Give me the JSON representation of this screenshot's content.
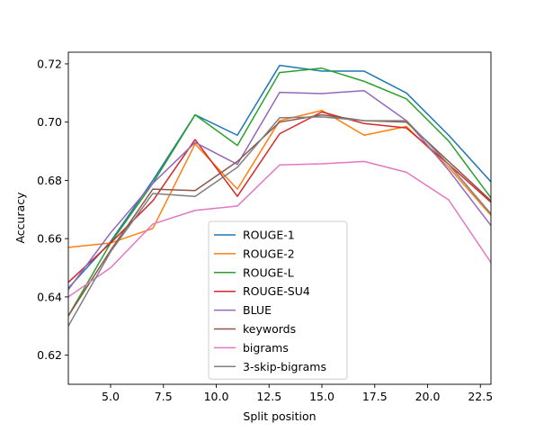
{
  "chart_data": {
    "type": "line",
    "title": "",
    "xlabel": "Split position",
    "ylabel": "Accuracy",
    "xlim": [
      3,
      23
    ],
    "ylim": [
      0.61,
      0.724
    ],
    "xticks": [
      5.0,
      7.5,
      10.0,
      12.5,
      15.0,
      17.5,
      20.0,
      22.5
    ],
    "xtick_labels": [
      "5.0",
      "7.5",
      "10.0",
      "12.5",
      "15.0",
      "17.5",
      "20.0",
      "22.5"
    ],
    "yticks": [
      0.62,
      0.64,
      0.66,
      0.68,
      0.7,
      0.72
    ],
    "ytick_labels": [
      "0.62",
      "0.64",
      "0.66",
      "0.68",
      "0.70",
      "0.72"
    ],
    "grid": false,
    "legend_position": "lower-center",
    "x": [
      3,
      5,
      7,
      9,
      11,
      13,
      15,
      17,
      19,
      21,
      23
    ],
    "series": [
      {
        "name": "ROUGE-1",
        "color": "#1f77b4",
        "values": [
          0.643,
          0.659,
          0.68,
          0.7025,
          0.6955,
          0.7195,
          0.7175,
          0.7175,
          0.71,
          0.6955,
          0.6795
        ]
      },
      {
        "name": "ROUGE-2",
        "color": "#ff7f0e",
        "values": [
          0.657,
          0.6585,
          0.6635,
          0.6925,
          0.677,
          0.7005,
          0.704,
          0.6955,
          0.6985,
          0.6845,
          0.668
        ]
      },
      {
        "name": "ROUGE-L",
        "color": "#2ca02c",
        "values": [
          0.6335,
          0.6585,
          0.679,
          0.7025,
          0.692,
          0.717,
          0.7185,
          0.714,
          0.708,
          0.6935,
          0.674
        ]
      },
      {
        "name": "ROUGE-SU4",
        "color": "#d62728",
        "values": [
          0.645,
          0.6585,
          0.673,
          0.694,
          0.6745,
          0.696,
          0.7035,
          0.6995,
          0.698,
          0.6855,
          0.6725
        ]
      },
      {
        "name": "BLUE",
        "color": "#9467bd",
        "values": [
          0.6425,
          0.662,
          0.679,
          0.693,
          0.6855,
          0.7102,
          0.7098,
          0.7108,
          0.7005,
          0.6835,
          0.6645
        ]
      },
      {
        "name": "keywords",
        "color": "#8c564b",
        "values": [
          0.6335,
          0.656,
          0.677,
          0.6765,
          0.6865,
          0.7,
          0.7025,
          0.7005,
          0.7,
          0.6865,
          0.673
        ]
      },
      {
        "name": "bigrams",
        "color": "#e377c2",
        "values": [
          0.64,
          0.65,
          0.665,
          0.6697,
          0.6712,
          0.6853,
          0.6857,
          0.6865,
          0.6828,
          0.6733,
          0.6518
        ]
      },
      {
        "name": "3-skip-bigrams",
        "color": "#7f7f7f",
        "values": [
          0.63,
          0.6555,
          0.6755,
          0.6745,
          0.6845,
          0.7015,
          0.7018,
          0.7005,
          0.7005,
          0.6855,
          0.6685
        ]
      }
    ]
  }
}
